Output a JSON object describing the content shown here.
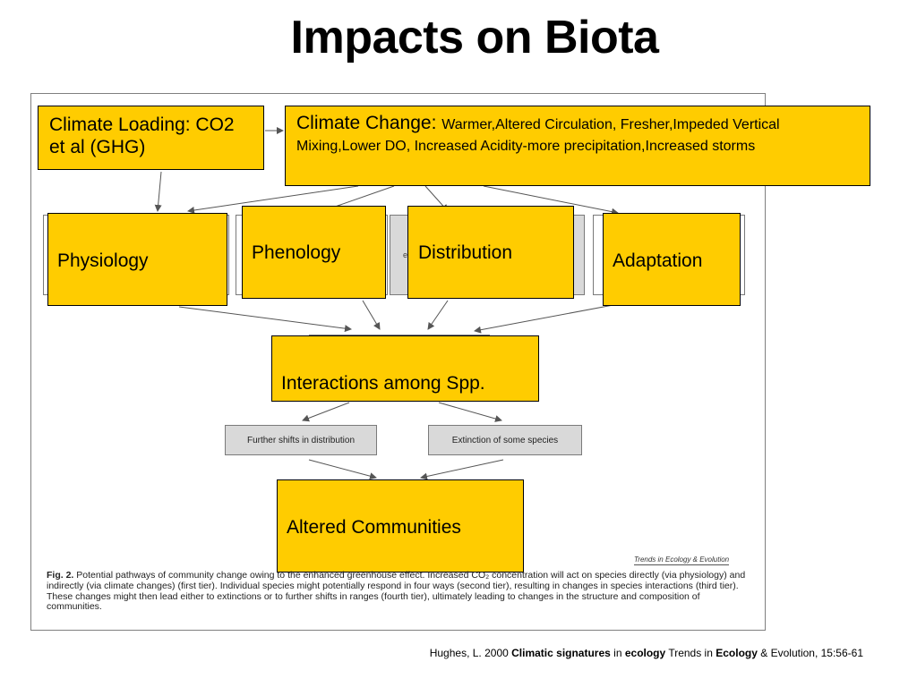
{
  "title": "Impacts on Biota",
  "boxes": {
    "climate_loading": "Climate Loading: CO2 et al (GHG)",
    "climate_change_label": "Climate Change:",
    "climate_change_detail": "Warmer,Altered Circulation, Fresher,Impeded Vertical Mixing,Lower DO, Increased Acidity-more precipitation,Increased storms",
    "physiology": "Physiology",
    "phenology": "Phenology",
    "distribution": "Distribution",
    "adaptation": "Adaptation",
    "interactions": "Interactions among Spp.",
    "altered_communities": "Altered Communities"
  },
  "figure": {
    "further_shifts": "Further shifts in distribution",
    "extinction": "Extinction of some species",
    "journal_tag": "Trends in Ecology & Evolution",
    "caption_label": "Fig. 2.",
    "caption_text": "Potential pathways of community change owing to the enhanced greenhouse effect. Increased CO₂ concentration will act on species directly (via physiology) and indirectly (via climate changes) (first tier). Individual species might potentially respond in four ways (second tier), resulting in changes in species interactions (third tier). These changes might then lead either to extinctions or to further shifts in ranges (fourth tier), ultimately leading to changes in the structure and composition of communities."
  },
  "citation": {
    "prefix": "Hughes, L. 2000 ",
    "bold1": "Climatic signatures",
    "mid1": " in ",
    "bold2": "ecology",
    "mid2": " Trends in ",
    "bold3": "Ecology",
    "suffix": " & Evolution, 15:56-61"
  },
  "colors": {
    "box_fill": "#ffcc00",
    "figure_box_fill": "#d9d9d9"
  }
}
